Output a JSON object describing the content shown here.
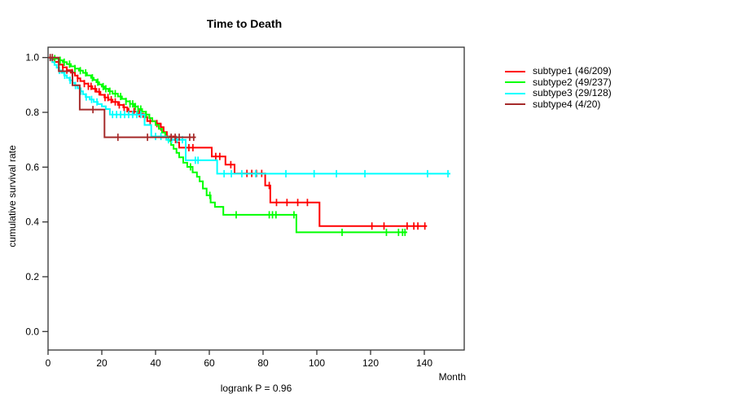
{
  "chart_data": {
    "type": "line",
    "subtype": "kaplan-meier-step",
    "title": "Time to Death",
    "xlabel": "Month",
    "ylabel": "cumulative survival rate",
    "annotation": "logrank P = 0.96",
    "xlim": [
      0,
      154.85
    ],
    "ylim": [
      -0.0675,
      1.0377
    ],
    "x_ticks": [
      0,
      20,
      40,
      60,
      80,
      100,
      120,
      140
    ],
    "y_ticks": [
      0.0,
      0.2,
      0.4,
      0.6,
      0.8,
      1.0
    ],
    "grid": false,
    "legend_position": "right-outside",
    "axis_color": "#333333",
    "series": [
      {
        "name": "subtype1 (46/209)",
        "color": "#ff0000",
        "end": 141,
        "steps": [
          [
            0,
            1
          ],
          [
            1,
            0.993
          ],
          [
            2.5,
            0.984
          ],
          [
            4,
            0.974
          ],
          [
            5.5,
            0.964
          ],
          [
            7,
            0.954
          ],
          [
            8.5,
            0.945
          ],
          [
            10,
            0.934
          ],
          [
            11,
            0.924
          ],
          [
            12,
            0.914
          ],
          [
            13.5,
            0.905
          ],
          [
            15,
            0.895
          ],
          [
            16.5,
            0.886
          ],
          [
            18,
            0.875
          ],
          [
            19.5,
            0.864
          ],
          [
            21,
            0.854
          ],
          [
            22.5,
            0.846
          ],
          [
            24,
            0.838
          ],
          [
            26,
            0.827
          ],
          [
            28,
            0.818
          ],
          [
            29.5,
            0.803
          ],
          [
            33,
            0.795
          ],
          [
            35.4,
            0.783
          ],
          [
            36.9,
            0.768
          ],
          [
            40,
            0.759
          ],
          [
            41.9,
            0.746
          ],
          [
            43,
            0.728
          ],
          [
            44.2,
            0.712
          ],
          [
            47.5,
            0.69
          ],
          [
            48.8,
            0.671
          ],
          [
            60.9,
            0.639
          ],
          [
            66,
            0.609
          ],
          [
            69.4,
            0.577
          ],
          [
            80.8,
            0.533
          ],
          [
            82.7,
            0.471
          ],
          [
            101,
            0.385
          ]
        ],
        "censors": [
          5.5,
          7,
          9,
          11,
          13.5,
          15,
          16,
          17.5,
          19,
          21.2,
          22.3,
          23.5,
          25,
          26.5,
          28.3,
          30,
          32,
          34,
          36,
          38,
          40.5,
          42,
          52.4,
          53.9,
          62.4,
          63.9,
          68,
          74,
          75.8,
          77.5,
          79.5,
          82.3,
          85,
          88.9,
          92.9,
          96.5,
          120.5,
          125,
          133.6,
          136.1,
          137.6,
          140.2
        ]
      },
      {
        "name": "subtype2 (49/237)",
        "color": "#00ff00",
        "end": 133.6,
        "steps": [
          [
            0,
            1
          ],
          [
            2,
            0.996
          ],
          [
            4,
            0.99
          ],
          [
            5.5,
            0.983
          ],
          [
            7,
            0.976
          ],
          [
            8.5,
            0.968
          ],
          [
            10,
            0.96
          ],
          [
            11.5,
            0.952
          ],
          [
            13,
            0.944
          ],
          [
            14.5,
            0.935
          ],
          [
            16,
            0.926
          ],
          [
            17,
            0.918
          ],
          [
            18,
            0.91
          ],
          [
            19,
            0.902
          ],
          [
            20,
            0.894
          ],
          [
            21,
            0.886
          ],
          [
            22.5,
            0.877
          ],
          [
            24,
            0.868
          ],
          [
            26,
            0.858
          ],
          [
            27.5,
            0.849
          ],
          [
            29,
            0.84
          ],
          [
            30.5,
            0.831
          ],
          [
            32,
            0.821
          ],
          [
            33.5,
            0.812
          ],
          [
            35,
            0.802
          ],
          [
            36.4,
            0.792
          ],
          [
            37.7,
            0.779
          ],
          [
            38.8,
            0.767
          ],
          [
            40,
            0.754
          ],
          [
            41.2,
            0.74
          ],
          [
            42.4,
            0.726
          ],
          [
            43.6,
            0.711
          ],
          [
            44.8,
            0.696
          ],
          [
            45.8,
            0.681
          ],
          [
            46.7,
            0.667
          ],
          [
            47.8,
            0.652
          ],
          [
            48.8,
            0.636
          ],
          [
            50.3,
            0.616
          ],
          [
            51.8,
            0.601
          ],
          [
            53.8,
            0.581
          ],
          [
            55.4,
            0.565
          ],
          [
            56.4,
            0.548
          ],
          [
            57.6,
            0.522
          ],
          [
            59,
            0.497
          ],
          [
            60.5,
            0.471
          ],
          [
            62.1,
            0.455
          ],
          [
            65.2,
            0.426
          ],
          [
            92.4,
            0.362
          ]
        ],
        "censors": [
          2.5,
          4.5,
          6,
          8,
          10,
          12,
          14,
          16.5,
          18.5,
          20.5,
          21.5,
          23,
          25,
          27,
          29,
          30.5,
          31.5,
          32.5,
          33.5,
          34.5,
          36.5,
          53,
          60.2,
          70,
          82.3,
          83.5,
          84.8,
          91.5,
          109.4,
          125.9,
          130.4,
          131.9,
          132.8
        ]
      },
      {
        "name": "subtype3 (29/128)",
        "color": "#00ffff",
        "end": 149.7,
        "steps": [
          [
            0,
            1
          ],
          [
            0.8,
            0.992
          ],
          [
            1.6,
            0.983
          ],
          [
            2.4,
            0.973
          ],
          [
            3.2,
            0.963
          ],
          [
            4,
            0.953
          ],
          [
            5,
            0.944
          ],
          [
            6,
            0.935
          ],
          [
            7,
            0.926
          ],
          [
            8,
            0.917
          ],
          [
            9,
            0.908
          ],
          [
            10,
            0.898
          ],
          [
            11,
            0.888
          ],
          [
            12,
            0.877
          ],
          [
            13,
            0.866
          ],
          [
            14,
            0.856
          ],
          [
            15.5,
            0.847
          ],
          [
            17,
            0.838
          ],
          [
            18.5,
            0.83
          ],
          [
            20,
            0.822
          ],
          [
            21.5,
            0.812
          ],
          [
            23,
            0.792
          ],
          [
            35.9,
            0.754
          ],
          [
            38.4,
            0.712
          ],
          [
            44,
            0.7
          ],
          [
            51.2,
            0.625
          ],
          [
            62.9,
            0.576
          ]
        ],
        "censors": [
          4.2,
          6.2,
          8.2,
          10.2,
          12.2,
          14.2,
          16.2,
          18.2,
          24,
          25.5,
          27,
          28.5,
          30,
          31.5,
          33,
          34.5,
          40,
          42,
          44.8,
          46,
          48,
          50,
          54.8,
          55.8,
          65.5,
          68.2,
          72.1,
          77.3,
          88.5,
          99,
          107.3,
          117.9,
          141.2,
          148.8
        ]
      },
      {
        "name": "subtype4 (4/20)",
        "color": "#a52a2a",
        "end": 55,
        "steps": [
          [
            0,
            1
          ],
          [
            4,
            0.95
          ],
          [
            9.1,
            0.899
          ],
          [
            11.8,
            0.81
          ],
          [
            21,
            0.709
          ]
        ],
        "censors": [
          0.8,
          1.6,
          16.7,
          26,
          37,
          45.8,
          47.3,
          48.8,
          52.7,
          54.2
        ]
      }
    ]
  }
}
